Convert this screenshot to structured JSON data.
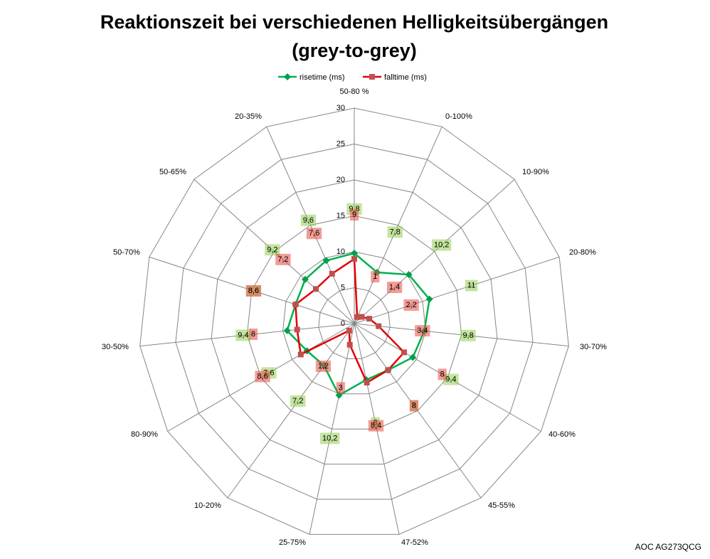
{
  "chart_data": {
    "type": "radar",
    "title_lines": [
      "Reaktionszeit bei verschiedenen Helligkeitsübergängen",
      "(grey-to-grey)"
    ],
    "categories": [
      "50-80 %",
      "0-100%",
      "10-90%",
      "20-80%",
      "30-70%",
      "40-60%",
      "45-55%",
      "47-52%",
      "25-75%",
      "10-20%",
      "80-90%",
      "30-50%",
      "50-70%",
      "50-65%",
      "20-35%"
    ],
    "series": [
      {
        "name": "risetime (ms)",
        "values": [
          9.8,
          7.8,
          10.2,
          11,
          9.8,
          9.4,
          8,
          8,
          10.2,
          7.2,
          7.6,
          9.4,
          8.6,
          9.2,
          9.6
        ],
        "labels": [
          "9,8",
          "7,8",
          "10,2",
          "11",
          "9,8",
          "9,4",
          "8",
          "8",
          "10,2",
          "7,2",
          "7,6",
          "9,4",
          "8,6",
          "9,2",
          "9,6"
        ],
        "color": "#00b050",
        "marker": "diamond",
        "marker_color": "#00a04a",
        "label_bg": "#92d050"
      },
      {
        "name": "falltime (ms)",
        "values": [
          9,
          1,
          1.4,
          2.2,
          3.4,
          8,
          8,
          8.4,
          3,
          1.2,
          8.6,
          8,
          8.6,
          7.2,
          7.6
        ],
        "labels": [
          "9",
          "1",
          "1,4",
          "2,2",
          "3,4",
          "8",
          "8",
          "8,4",
          "3",
          "1,2",
          "8,6",
          "8",
          "8,6",
          "7,2",
          "7,6"
        ],
        "color": "#e00000",
        "marker": "square",
        "marker_color": "#c0504d",
        "label_bg": "#e84a3f"
      }
    ],
    "radial_axis": {
      "min": 0,
      "max": 30,
      "ticks": [
        0,
        5,
        10,
        15,
        20,
        25,
        30
      ]
    },
    "grid": true,
    "legend": "top",
    "data_labels": true,
    "annotations": [
      "AOC AG273QCG"
    ]
  },
  "colors": {
    "grid": "#868686",
    "text": "#000000"
  }
}
